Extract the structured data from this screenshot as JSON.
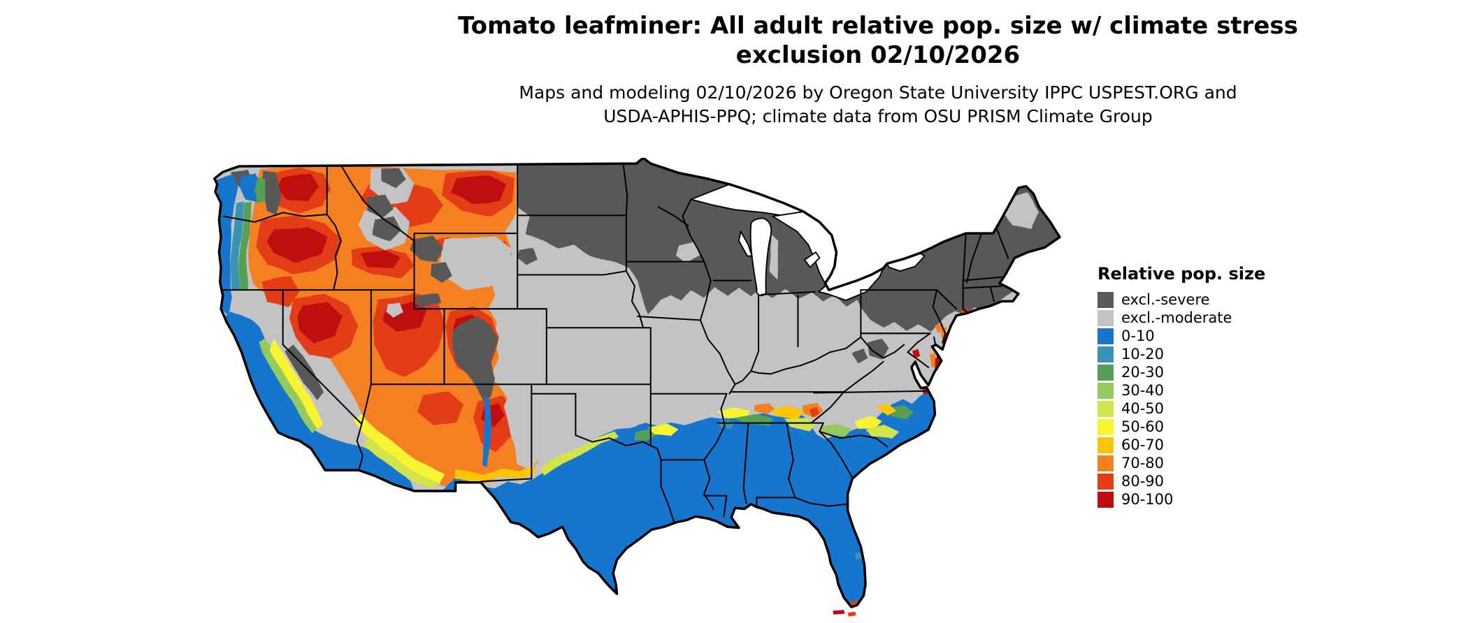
{
  "header": {
    "title_line1": "Tomato leafminer: All adult relative pop. size w/ climate stress",
    "title_line2": "exclusion 02/10/2026",
    "subtitle_line1": "Maps and modeling 02/10/2026 by Oregon State University IPPC USPEST.ORG and",
    "subtitle_line2": "USDA-APHIS-PPQ; climate data from OSU PRISM Climate Group"
  },
  "legend": {
    "title": "Relative pop. size",
    "entries": [
      {
        "label": "excl.-severe",
        "color": "#595959"
      },
      {
        "label": "excl.-moderate",
        "color": "#c3c3c3"
      },
      {
        "label": "0-10",
        "color": "#1874cd"
      },
      {
        "label": "10-20",
        "color": "#3a93b4"
      },
      {
        "label": "20-30",
        "color": "#55a054"
      },
      {
        "label": "30-40",
        "color": "#93cb5e"
      },
      {
        "label": "40-50",
        "color": "#d3e34b"
      },
      {
        "label": "50-60",
        "color": "#f8f432"
      },
      {
        "label": "60-70",
        "color": "#fbc505"
      },
      {
        "label": "70-80",
        "color": "#f48020"
      },
      {
        "label": "80-90",
        "color": "#e23d14"
      },
      {
        "label": "90-100",
        "color": "#c00a0f"
      }
    ]
  },
  "map_regions": [
    {
      "area": "northern-tier-great-lakes-northeast",
      "category": "excl.-severe"
    },
    {
      "area": "central-plains-midwest-appalachians",
      "category": "excl.-moderate"
    },
    {
      "area": "southern-states-gulf-coast-florida",
      "category": "0-10"
    },
    {
      "area": "california-valleys-and-south-deserts",
      "category": "0-10"
    },
    {
      "area": "pacific-coast-strip",
      "category": "0-10"
    },
    {
      "area": "columbia-basin-eastern-washington",
      "category": "80-100"
    },
    {
      "area": "eastern-oregon-northern-nevada-utah",
      "category": "70-100"
    },
    {
      "area": "snake-river-plain-idaho",
      "category": "80-90"
    },
    {
      "area": "eastern-montana-plains",
      "category": "80-90"
    },
    {
      "area": "western-colorado-new-mexico-highlands",
      "category": "60-90"
    },
    {
      "area": "southern-arizona-transition-band",
      "category": "40-60"
    },
    {
      "area": "tennessee-carolinas-transition-band",
      "category": "20-70"
    },
    {
      "area": "colorado-rockies-high-peaks",
      "category": "excl.-severe"
    },
    {
      "area": "mid-atlantic-coastal-urban-spots",
      "category": "80-100"
    },
    {
      "area": "south-florida-keys",
      "category": "80-100"
    }
  ]
}
